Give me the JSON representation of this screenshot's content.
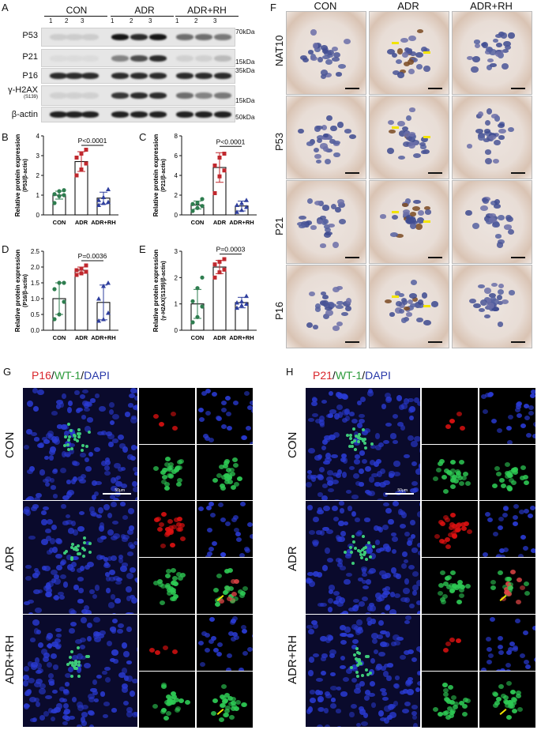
{
  "figure": {
    "panel_letters": [
      "A",
      "B",
      "C",
      "D",
      "E",
      "F",
      "G",
      "H"
    ],
    "groups": [
      "CON",
      "ADR",
      "ADR+RH"
    ],
    "lane_numbers": [
      "1",
      "2",
      "3",
      "1",
      "2",
      "3",
      "1",
      "2",
      "3"
    ]
  },
  "western_blot": {
    "proteins": [
      {
        "name": "P53",
        "sub": "",
        "kda": "70kDa"
      },
      {
        "name": "P21",
        "sub": "",
        "kda": "15kDa"
      },
      {
        "name": "P16",
        "sub": "",
        "kda": "35kDa"
      },
      {
        "name": "γ-H2AX",
        "sub": "(S139)",
        "kda": "15kDa"
      },
      {
        "name": "β-actin",
        "sub": "",
        "kda": "50kDa"
      }
    ],
    "band_intensity": [
      [
        0.12,
        0.12,
        0.12,
        0.95,
        0.85,
        0.95,
        0.55,
        0.55,
        0.5
      ],
      [
        0.05,
        0.05,
        0.05,
        0.45,
        0.7,
        0.85,
        0.1,
        0.1,
        0.2
      ],
      [
        0.85,
        0.85,
        0.85,
        0.85,
        0.85,
        0.85,
        0.85,
        0.85,
        0.85
      ],
      [
        0.1,
        0.1,
        0.1,
        0.8,
        0.85,
        0.85,
        0.55,
        0.45,
        0.5
      ],
      [
        0.9,
        0.9,
        0.9,
        0.9,
        0.9,
        0.9,
        0.9,
        0.9,
        0.9
      ]
    ]
  },
  "chart_data": [
    {
      "type": "bar",
      "panel": "B",
      "ylabel": "Relative protein expression",
      "ylabel2": "(P53/β-actin)",
      "categories": [
        "CON",
        "ADR",
        "ADR+RH"
      ],
      "values": [
        1.0,
        2.7,
        0.85
      ],
      "errors": [
        0.2,
        0.5,
        0.3
      ],
      "ylim": [
        0,
        4
      ],
      "yticks": [
        "0",
        "1",
        "2",
        "3",
        "4"
      ],
      "annotation": "P<0.0001",
      "colors": [
        "#2e7d4f",
        "#c0282e",
        "#2f3f9e"
      ],
      "markers": [
        "circle",
        "square",
        "triangle"
      ],
      "points": [
        [
          0.6,
          0.95,
          1.0,
          1.05,
          1.2,
          1.25
        ],
        [
          2.0,
          2.3,
          2.6,
          2.9,
          3.1,
          3.3
        ],
        [
          0.5,
          0.6,
          0.65,
          0.75,
          0.9,
          1.3
        ]
      ]
    },
    {
      "type": "bar",
      "panel": "C",
      "ylabel": "Relative protein expression",
      "ylabel2": "(P21/β-actin)",
      "categories": [
        "CON",
        "ADR",
        "ADR+RH"
      ],
      "values": [
        1.0,
        4.8,
        0.9
      ],
      "errors": [
        0.4,
        1.5,
        0.5
      ],
      "ylim": [
        0,
        8
      ],
      "yticks": [
        "0",
        "2",
        "4",
        "6",
        "8"
      ],
      "annotation": "P<0.0001",
      "colors": [
        "#2e7d4f",
        "#c0282e",
        "#2f3f9e"
      ],
      "markers": [
        "circle",
        "square",
        "triangle"
      ],
      "points": [
        [
          0.4,
          0.7,
          0.9,
          1.1,
          1.2,
          1.6
        ],
        [
          2.2,
          3.9,
          4.5,
          5.0,
          5.8,
          6.2
        ],
        [
          0.3,
          0.5,
          0.8,
          1.0,
          1.2,
          1.5
        ]
      ]
    },
    {
      "type": "bar",
      "panel": "D",
      "ylabel": "Relative protein expression",
      "ylabel2": "(P16/β-actin)",
      "categories": [
        "CON",
        "ADR",
        "ADR+RH"
      ],
      "values": [
        1.0,
        1.9,
        0.88
      ],
      "errors": [
        0.5,
        0.1,
        0.55
      ],
      "ylim": [
        0,
        2.5
      ],
      "yticks": [
        "0.0",
        "0.5",
        "1.0",
        "1.5",
        "2.0",
        "2.5"
      ],
      "annotation": "P=0.0036",
      "colors": [
        "#2e7d4f",
        "#c0282e",
        "#2f3f9e"
      ],
      "markers": [
        "circle",
        "square",
        "triangle"
      ],
      "points": [
        [
          0.35,
          0.5,
          0.9,
          1.3,
          1.5,
          1.5
        ],
        [
          1.75,
          1.8,
          1.85,
          1.9,
          1.95,
          2.05
        ],
        [
          0.3,
          0.35,
          0.55,
          1.0,
          1.4,
          1.5
        ]
      ]
    },
    {
      "type": "bar",
      "panel": "E",
      "ylabel": "Relative protein expression",
      "ylabel2": "(γ-H2AX(S139)/β-actin)",
      "categories": [
        "CON",
        "ADR",
        "ADR+RH"
      ],
      "values": [
        1.0,
        2.4,
        1.05
      ],
      "errors": [
        0.55,
        0.25,
        0.2
      ],
      "ylim": [
        0,
        3
      ],
      "yticks": [
        "0",
        "1",
        "2",
        "3"
      ],
      "annotation": "P=0.0003",
      "colors": [
        "#2e7d4f",
        "#c0282e",
        "#2f3f9e"
      ],
      "markers": [
        "circle",
        "square",
        "triangle"
      ],
      "points": [
        [
          0.3,
          0.5,
          0.9,
          1.1,
          1.6,
          2.0
        ],
        [
          2.0,
          2.2,
          2.3,
          2.5,
          2.6,
          2.7
        ],
        [
          0.85,
          0.95,
          1.0,
          1.05,
          1.1,
          1.3
        ]
      ]
    }
  ],
  "ihc": {
    "columns": [
      "CON",
      "ADR",
      "ADR+RH"
    ],
    "rows": [
      "NAT10",
      "P53",
      "P21",
      "P16"
    ]
  },
  "immunofluorescence_g": {
    "title_parts": [
      "P16",
      "/",
      "WT-1",
      "/",
      "DAPI"
    ],
    "title_colors": [
      "#d9252b",
      "#111111",
      "#2b9a3a",
      "#111111",
      "#2737a8"
    ],
    "rows": [
      "CON",
      "ADR",
      "ADR+RH"
    ],
    "scale_text": "50μm"
  },
  "immunofluorescence_h": {
    "title_parts": [
      "P21",
      "/",
      "WT-1",
      "/",
      "DAPI"
    ],
    "title_colors": [
      "#d9252b",
      "#111111",
      "#2b9a3a",
      "#111111",
      "#2737a8"
    ],
    "rows": [
      "CON",
      "ADR",
      "ADR+RH"
    ],
    "scale_text": "50μm"
  }
}
